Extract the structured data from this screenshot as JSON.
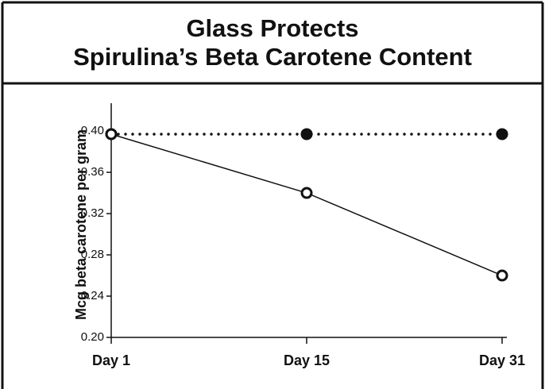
{
  "chart_data": {
    "type": "line",
    "title": [
      "Glass Protects",
      "Spirulina’s Beta Carotene Content"
    ],
    "y_label": "Mcg beta carotene per gram",
    "categories": [
      "Day 1",
      "Day 15",
      "Day 31"
    ],
    "series": [
      {
        "color": "#111111",
        "line_style": "dotted",
        "marker": "filled",
        "values": [
          0.397,
          0.397,
          0.397
        ]
      },
      {
        "color": "#111111",
        "line_style": "solid",
        "marker": "open",
        "values": [
          0.397,
          0.34,
          0.26
        ]
      }
    ],
    "ylim": [
      0.2,
      0.427
    ],
    "yticks": [
      {
        "value": 0.2,
        "label": "0.20"
      },
      0.24,
      0.28,
      0.32,
      0.36,
      {
        "value": 0.4,
        "label": "0.40"
      }
    ]
  }
}
